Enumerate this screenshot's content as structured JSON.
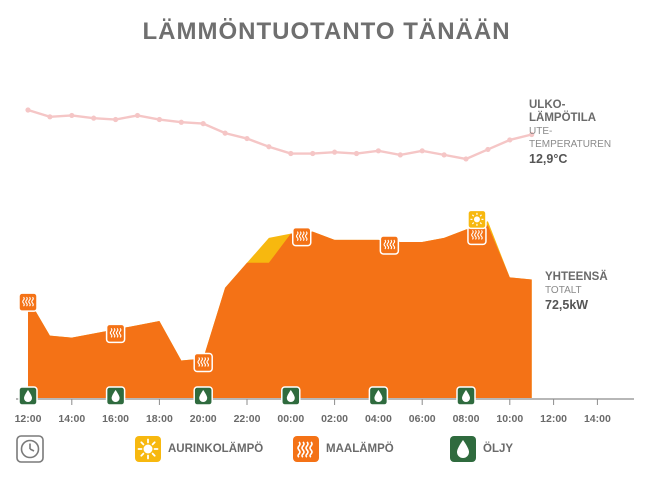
{
  "title": "LÄMMÖNTUOTANTO TÄNÄÄN",
  "outdoor": {
    "label": "ULKO-\nLÄMPÖTILA",
    "sublabel": "UTE-\nTEMPERATUREN",
    "value": "12,9°C"
  },
  "total": {
    "label": "YHTEENSÄ",
    "sublabel": "TOTALT",
    "value": "72,5kW"
  },
  "legend": {
    "solar": "AURINKOLÄMPÖ",
    "ground": "MAALÄMPÖ",
    "oil": "ÖLJY"
  },
  "colors": {
    "title": "#6f6f6f",
    "ground": "#f47216",
    "solar": "#f7b80f",
    "oil": "#2f6b3e",
    "temperature_line": "#f5c6c6",
    "axis": "#8c8c8c"
  },
  "icons": {
    "solar": "sun-icon",
    "ground": "heat-waves-icon",
    "oil": "oil-drop-icon",
    "clock": "clock-icon"
  },
  "chart_data": {
    "type": "area",
    "x_ticks": [
      "12:00",
      "14:00",
      "16:00",
      "18:00",
      "20:00",
      "22:00",
      "00:00",
      "02:00",
      "04:00",
      "06:00",
      "08:00",
      "10:00",
      "12:00",
      "14:00"
    ],
    "x_hours": [
      0,
      1,
      2,
      3,
      4,
      5,
      6,
      7,
      8,
      9,
      10,
      11,
      12,
      13,
      14,
      15,
      16,
      17,
      18,
      19,
      20,
      21,
      22,
      23
    ],
    "series": [
      {
        "name": "MAALÄMPÖ",
        "values": [
          48,
          30,
          29,
          31,
          33,
          35,
          37,
          18,
          19,
          53,
          65,
          65,
          79,
          80,
          76,
          76,
          76,
          75,
          75,
          77,
          81,
          83,
          58,
          57
        ]
      },
      {
        "name": "AURINKOLÄMPÖ",
        "values": [
          0,
          0,
          0,
          0,
          0,
          0,
          0,
          0,
          0,
          0,
          0,
          12,
          0,
          0,
          0,
          0,
          0,
          0,
          0,
          0,
          0,
          2,
          0,
          0
        ]
      }
    ],
    "outdoor_temperature": [
      14.6,
      14.1,
      14.2,
      14.0,
      13.9,
      14.2,
      13.9,
      13.7,
      13.6,
      12.9,
      12.5,
      11.9,
      11.4,
      11.4,
      11.5,
      11.4,
      11.6,
      11.3,
      11.6,
      11.3,
      11.0,
      11.7,
      12.4,
      12.8
    ],
    "markers": [
      {
        "type": "ground",
        "hour": 0
      },
      {
        "type": "ground",
        "hour": 4
      },
      {
        "type": "ground",
        "hour": 8
      },
      {
        "type": "ground",
        "hour": 12.5
      },
      {
        "type": "ground",
        "hour": 16.5
      },
      {
        "type": "ground",
        "hour": 20.5
      },
      {
        "type": "solar",
        "hour": 20.5
      }
    ],
    "oil_markers": [
      0,
      4,
      8,
      12,
      16,
      20
    ],
    "ylim": [
      0,
      100
    ]
  }
}
